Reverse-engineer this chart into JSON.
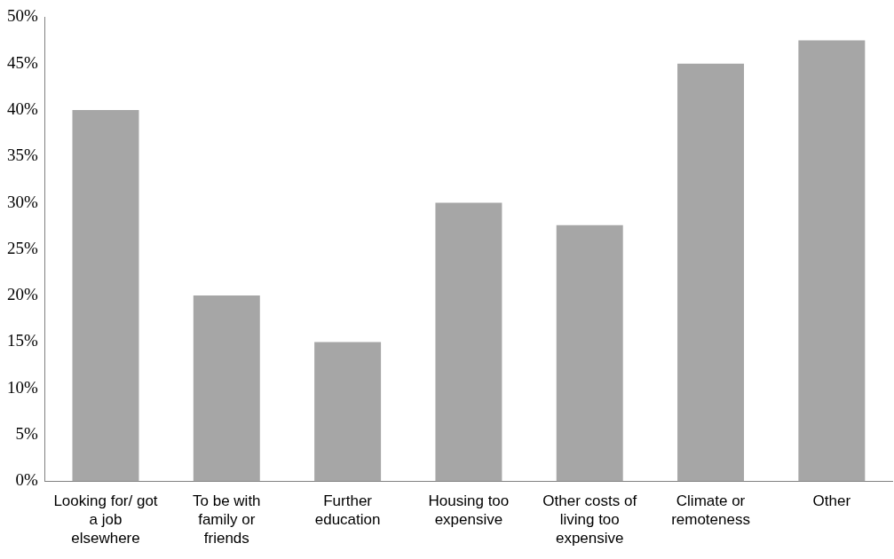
{
  "chart_data": {
    "type": "bar",
    "categories": [
      "Looking for/ got a job elsewhere",
      "To be with family or friends",
      "Further education",
      "Housing too expensive",
      "Other costs of living too expensive",
      "Climate or remoteness",
      "Other"
    ],
    "values": [
      40,
      20,
      15,
      30,
      27.6,
      45,
      47.5
    ],
    "color": "#a6a6a6",
    "ylim": [
      0,
      50
    ],
    "yticks": [
      {
        "value": 0,
        "label": "0%"
      },
      {
        "value": 5,
        "label": "5%"
      },
      {
        "value": 10,
        "label": "10%"
      },
      {
        "value": 15,
        "label": "15%"
      },
      {
        "value": 20,
        "label": "20%"
      },
      {
        "value": 25,
        "label": "25%"
      },
      {
        "value": 30,
        "label": "30%"
      },
      {
        "value": 35,
        "label": "35%"
      },
      {
        "value": 40,
        "label": "40%"
      },
      {
        "value": 45,
        "label": "45%"
      },
      {
        "value": 50,
        "label": "50%"
      }
    ],
    "grid": false,
    "legend": false
  }
}
